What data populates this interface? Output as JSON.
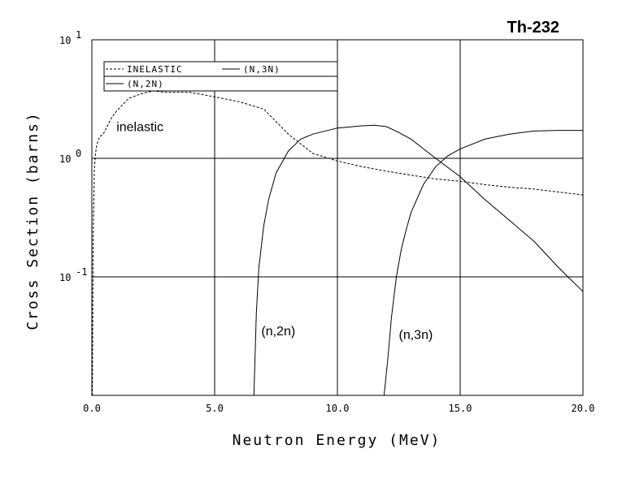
{
  "chart_data": {
    "type": "line",
    "title": "Th-232",
    "xlabel": "Neutron Energy (MeV)",
    "ylabel": "Cross Section (barns)",
    "xlim": [
      0,
      20
    ],
    "ylim": [
      0.01,
      10
    ],
    "yscale": "log",
    "grid": true,
    "legend_position": "top-left",
    "x_ticks": [
      "0.0",
      "5.0",
      "10.0",
      "15.0",
      "20.0"
    ],
    "y_ticks": [
      {
        "base": "10",
        "exp": "1"
      },
      {
        "base": "10",
        "exp": "0"
      },
      {
        "base": "10",
        "exp": "-1"
      }
    ],
    "legend": [
      "INELASTIC",
      "(N,3N)",
      "(N,2N)"
    ],
    "annotations": [
      {
        "text": "inelastic",
        "x": 1.0,
        "y": 1.7
      },
      {
        "text": "(n,2n)",
        "x": 6.9,
        "y": 0.032
      },
      {
        "text": "(n,3n)",
        "x": 12.5,
        "y": 0.03
      }
    ],
    "series": [
      {
        "name": "INELASTIC",
        "style": "dashed",
        "x": [
          0.02,
          0.05,
          0.1,
          0.15,
          0.2,
          0.3,
          0.5,
          0.8,
          1.0,
          1.5,
          2.0,
          2.5,
          3.0,
          4.0,
          5.0,
          6.0,
          7.0,
          8.0,
          9.0,
          10.0,
          11.0,
          12.0,
          13.0,
          14.0,
          15.0,
          16.0,
          17.0,
          18.0,
          19.0,
          20.0
        ],
        "y": [
          0.01,
          0.2,
          0.8,
          1.1,
          1.3,
          1.5,
          1.65,
          2.2,
          2.5,
          3.2,
          3.5,
          3.7,
          3.6,
          3.6,
          3.3,
          3.0,
          2.6,
          1.6,
          1.1,
          0.95,
          0.85,
          0.78,
          0.72,
          0.67,
          0.64,
          0.6,
          0.57,
          0.55,
          0.52,
          0.49
        ]
      },
      {
        "name": "(N,3N)",
        "style": "solid",
        "x": [
          11.9,
          12.05,
          12.2,
          12.4,
          12.6,
          12.8,
          13.0,
          13.5,
          14.0,
          14.5,
          15.0,
          16.0,
          17.0,
          18.0,
          19.0,
          20.0
        ],
        "y": [
          0.01,
          0.02,
          0.045,
          0.1,
          0.17,
          0.25,
          0.35,
          0.6,
          0.85,
          1.05,
          1.2,
          1.45,
          1.6,
          1.7,
          1.72,
          1.72
        ]
      },
      {
        "name": "(N,2N)",
        "style": "solid",
        "x": [
          6.6,
          6.7,
          6.8,
          7.0,
          7.2,
          7.5,
          8.0,
          8.5,
          9.0,
          10.0,
          11.0,
          11.5,
          12.0,
          12.5,
          13.0,
          14.0,
          15.0,
          16.0,
          17.0,
          18.0,
          19.0,
          20.0
        ],
        "y": [
          0.01,
          0.05,
          0.12,
          0.27,
          0.45,
          0.75,
          1.15,
          1.45,
          1.6,
          1.8,
          1.88,
          1.9,
          1.85,
          1.65,
          1.45,
          1.0,
          0.7,
          0.45,
          0.3,
          0.2,
          0.12,
          0.075
        ]
      }
    ]
  }
}
